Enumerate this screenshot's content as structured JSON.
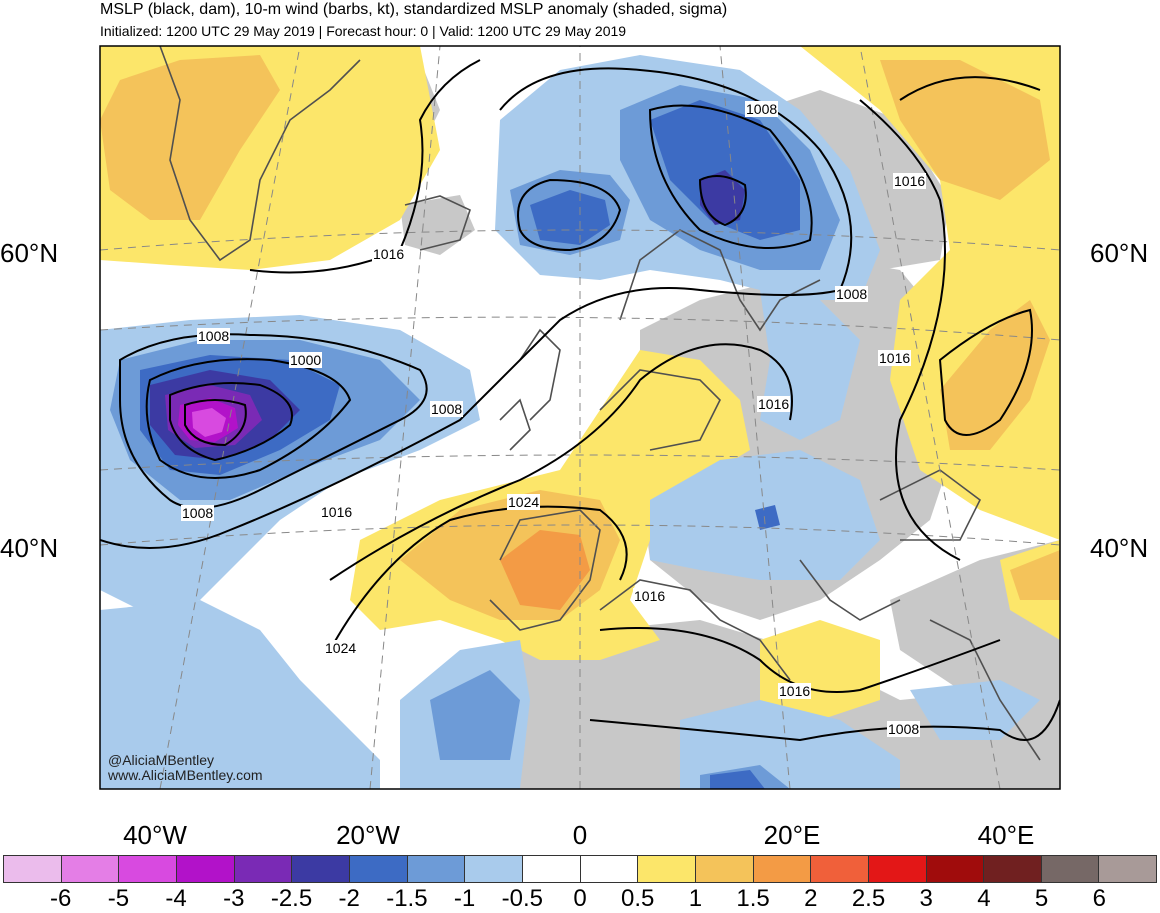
{
  "header": {
    "title": "MSLP (black, dam), 10-m wind (barbs, kt), standardized MSLP anomaly (shaded, sigma)",
    "subtitle": "Initialized: 1200 UTC 29 May 2019 | Forecast hour: 0 | Valid: 1200 UTC 29 May 2019"
  },
  "credits": {
    "handle": "@AliciaMBentley",
    "website": "www.AliciaMBentley.com"
  },
  "axes": {
    "lat_labels": [
      "60°N",
      "40°N"
    ],
    "lon_labels": [
      "40°W",
      "20°W",
      "0",
      "20°E",
      "40°E"
    ]
  },
  "isobar_labels": [
    "1008",
    "1016",
    "1008",
    "1000",
    "1008",
    "1008",
    "1016",
    "1024",
    "1024",
    "1016",
    "1016",
    "1016",
    "1008",
    "1016",
    "1016",
    "1008"
  ],
  "colorbar": {
    "colors": [
      "#ebbcec",
      "#e47ee6",
      "#d84ae0",
      "#b212c9",
      "#7a2ab5",
      "#3c3aa3",
      "#3d6bc4",
      "#6d9bd7",
      "#a9cbec",
      "#ffffff",
      "#ffffff",
      "#fce66a",
      "#f4c35a",
      "#f39b45",
      "#f0603a",
      "#e31717",
      "#a00c0c",
      "#702020",
      "#766866",
      "#a89a98"
    ],
    "ticks": [
      "-6",
      "-5",
      "-4",
      "-3",
      "-2.5",
      "-2",
      "-1.5",
      "-1",
      "-0.5",
      "0",
      "0.5",
      "1",
      "1.5",
      "2",
      "2.5",
      "3",
      "4",
      "5",
      "6"
    ]
  },
  "shading": {
    "land_gray": "#c8c8c8",
    "ocean": "#ffffff",
    "coastline": "#505050"
  }
}
